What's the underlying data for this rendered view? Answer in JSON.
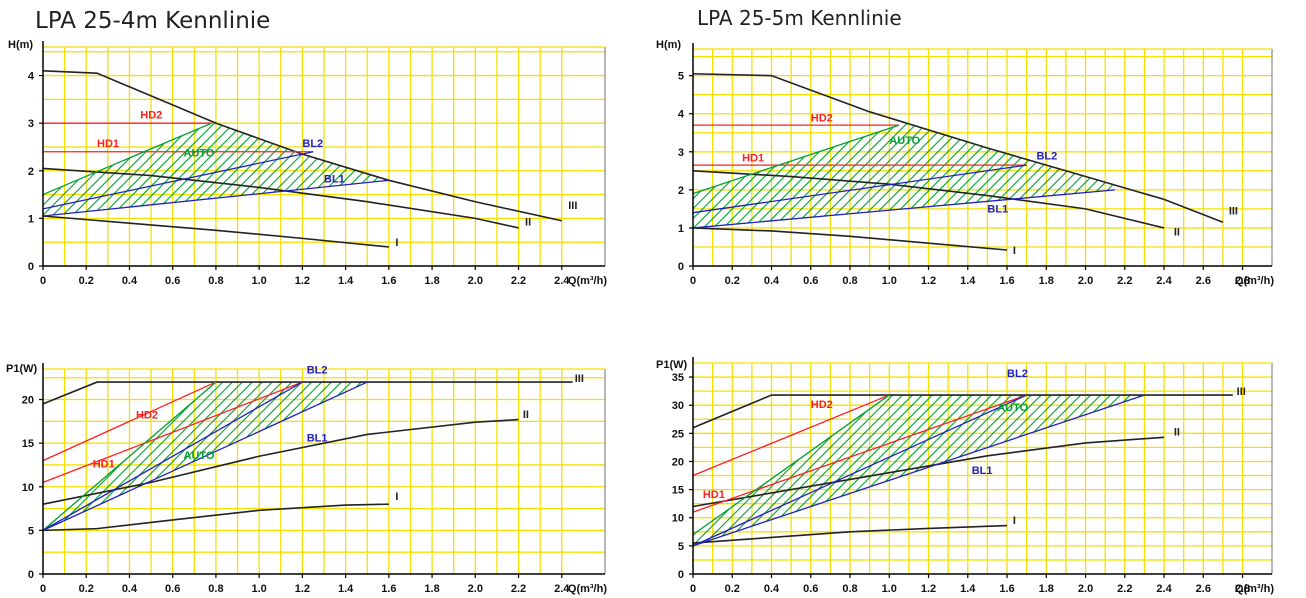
{
  "titles": {
    "left": "LPA 25-4m Kennlinie",
    "right": "LPA 25-5m Kennlinie"
  },
  "colors": {
    "grid": "#f5e000",
    "axis": "#000000",
    "black_curve": "#222222",
    "red": "#ff2020",
    "blue": "#2020c0",
    "green": "#00a030"
  },
  "chart_data": [
    {
      "id": "h4",
      "type": "line",
      "title": "",
      "xlabel": "Q(m³/h)",
      "ylabel": "H(m)",
      "xlim": [
        0,
        2.6
      ],
      "ylim": [
        0,
        4.6
      ],
      "xticks": [
        "0",
        "0.2",
        "0.4",
        "0.6",
        "0.8",
        "1.0",
        "1.2",
        "1.4",
        "1.6",
        "1.8",
        "2.0",
        "2.2",
        "2.4"
      ],
      "yticks": [
        "0",
        "1",
        "2",
        "3",
        "4"
      ],
      "grid": true,
      "series": [
        {
          "name": "III",
          "color": "black",
          "x": [
            0,
            0.25,
            0.8,
            1.2,
            1.6,
            2.0,
            2.4
          ],
          "y": [
            4.1,
            4.05,
            3.0,
            2.35,
            1.8,
            1.35,
            0.95
          ]
        },
        {
          "name": "II",
          "color": "black",
          "x": [
            0,
            0.5,
            1.0,
            1.5,
            2.0,
            2.2
          ],
          "y": [
            2.05,
            1.9,
            1.65,
            1.35,
            1.0,
            0.8
          ]
        },
        {
          "name": "I",
          "color": "black",
          "x": [
            0,
            0.4,
            0.8,
            1.2,
            1.6
          ],
          "y": [
            1.05,
            0.9,
            0.75,
            0.58,
            0.4
          ]
        },
        {
          "name": "HD2",
          "color": "red",
          "x": [
            0,
            0.78
          ],
          "y": [
            3.0,
            3.0
          ]
        },
        {
          "name": "HD1",
          "color": "red",
          "x": [
            0,
            1.25
          ],
          "y": [
            2.4,
            2.4
          ]
        },
        {
          "name": "BL2",
          "color": "blue",
          "x": [
            0,
            1.25
          ],
          "y": [
            1.2,
            2.4
          ]
        },
        {
          "name": "BL1",
          "color": "blue",
          "x": [
            0,
            1.6
          ],
          "y": [
            1.05,
            1.8
          ]
        },
        {
          "name": "AUTO",
          "color": "green",
          "x": [
            0,
            0.78
          ],
          "y": [
            1.5,
            3.0
          ]
        }
      ],
      "labels": [
        {
          "text": "III",
          "x": 2.43,
          "y": 1.2,
          "color": "black"
        },
        {
          "text": "II",
          "x": 2.23,
          "y": 0.85,
          "color": "black"
        },
        {
          "text": "I",
          "x": 1.63,
          "y": 0.42,
          "color": "black"
        },
        {
          "text": "HD2",
          "x": 0.45,
          "y": 3.1,
          "color": "red"
        },
        {
          "text": "HD1",
          "x": 0.25,
          "y": 2.5,
          "color": "red"
        },
        {
          "text": "AUTO",
          "x": 0.65,
          "y": 2.3,
          "color": "green"
        },
        {
          "text": "BL2",
          "x": 1.2,
          "y": 2.5,
          "color": "blue"
        },
        {
          "text": "BL1",
          "x": 1.3,
          "y": 1.75,
          "color": "blue"
        }
      ]
    },
    {
      "id": "h5",
      "type": "line",
      "title": "",
      "xlabel": "Q(m³/h)",
      "ylabel": "H(m)",
      "xlim": [
        0,
        2.95
      ],
      "ylim": [
        0,
        5.7
      ],
      "xticks": [
        "0",
        "0.2",
        "0.4",
        "0.6",
        "0.8",
        "1.0",
        "1.2",
        "1.4",
        "1.6",
        "1.8",
        "2.0",
        "2.2",
        "2.4",
        "2.6",
        "2.8"
      ],
      "yticks": [
        "0",
        "1",
        "2",
        "3",
        "4",
        "5"
      ],
      "grid": true,
      "series": [
        {
          "name": "III",
          "color": "black",
          "x": [
            0,
            0.4,
            0.9,
            1.5,
            2.0,
            2.4,
            2.7
          ],
          "y": [
            5.05,
            5.0,
            4.05,
            3.1,
            2.35,
            1.75,
            1.15
          ]
        },
        {
          "name": "II",
          "color": "black",
          "x": [
            0,
            0.5,
            1.0,
            1.5,
            2.0,
            2.4
          ],
          "y": [
            2.5,
            2.35,
            2.15,
            1.85,
            1.5,
            1.0
          ]
        },
        {
          "name": "I",
          "color": "black",
          "x": [
            0,
            0.4,
            0.8,
            1.2,
            1.6
          ],
          "y": [
            1.0,
            0.92,
            0.78,
            0.6,
            0.42
          ]
        },
        {
          "name": "HD2",
          "color": "red",
          "x": [
            0,
            1.05
          ],
          "y": [
            3.7,
            3.7
          ]
        },
        {
          "name": "HD1",
          "color": "red",
          "x": [
            0,
            1.7
          ],
          "y": [
            2.65,
            2.65
          ]
        },
        {
          "name": "BL2",
          "color": "blue",
          "x": [
            0,
            1.7
          ],
          "y": [
            1.4,
            2.65
          ]
        },
        {
          "name": "BL1",
          "color": "blue",
          "x": [
            0,
            2.15
          ],
          "y": [
            1.0,
            2.0
          ]
        },
        {
          "name": "AUTO",
          "color": "green",
          "x": [
            0,
            1.05
          ],
          "y": [
            1.9,
            3.7
          ]
        }
      ],
      "labels": [
        {
          "text": "III",
          "x": 2.73,
          "y": 1.35,
          "color": "black"
        },
        {
          "text": "II",
          "x": 2.45,
          "y": 0.8,
          "color": "black"
        },
        {
          "text": "I",
          "x": 1.63,
          "y": 0.32,
          "color": "black"
        },
        {
          "text": "HD2",
          "x": 0.6,
          "y": 3.8,
          "color": "red"
        },
        {
          "text": "HD1",
          "x": 0.25,
          "y": 2.75,
          "color": "red"
        },
        {
          "text": "AUTO",
          "x": 1.0,
          "y": 3.2,
          "color": "green"
        },
        {
          "text": "BL2",
          "x": 1.75,
          "y": 2.8,
          "color": "blue"
        },
        {
          "text": "BL1",
          "x": 1.5,
          "y": 1.4,
          "color": "blue"
        }
      ]
    },
    {
      "id": "p4",
      "type": "line",
      "title": "",
      "xlabel": "Q(m³/h)",
      "ylabel": "P1(W)",
      "xlim": [
        0,
        2.6
      ],
      "ylim": [
        0,
        23.5
      ],
      "xticks": [
        "0",
        "0.2",
        "0.4",
        "0.6",
        "0.8",
        "1.0",
        "1.2",
        "1.4",
        "1.6",
        "1.8",
        "2.0",
        "2.2",
        "2.4"
      ],
      "yticks": [
        "0",
        "5",
        "10",
        "15",
        "20"
      ],
      "grid": true,
      "series": [
        {
          "name": "III",
          "color": "black",
          "x": [
            0,
            0.25,
            2.45
          ],
          "y": [
            19.5,
            22.0,
            22.0
          ]
        },
        {
          "name": "II",
          "color": "black",
          "x": [
            0,
            0.5,
            1.0,
            1.5,
            2.0,
            2.2
          ],
          "y": [
            8.0,
            10.5,
            13.5,
            16.0,
            17.4,
            17.7
          ]
        },
        {
          "name": "I",
          "color": "black",
          "x": [
            0,
            0.25,
            0.6,
            1.0,
            1.4,
            1.6
          ],
          "y": [
            5.0,
            5.2,
            6.2,
            7.3,
            7.9,
            8.0
          ]
        },
        {
          "name": "HD2",
          "color": "red",
          "x": [
            0,
            0.8
          ],
          "y": [
            13.0,
            22.0
          ]
        },
        {
          "name": "HD1",
          "color": "red",
          "x": [
            0,
            1.2
          ],
          "y": [
            10.5,
            22.0
          ]
        },
        {
          "name": "AUTO",
          "color": "green",
          "x": [
            0,
            0.8
          ],
          "y": [
            5.0,
            22.0
          ]
        },
        {
          "name": "BL2",
          "color": "blue",
          "x": [
            0,
            1.2
          ],
          "y": [
            5.0,
            22.0
          ]
        },
        {
          "name": "BL1",
          "color": "blue",
          "x": [
            0,
            1.5
          ],
          "y": [
            5.0,
            22.0
          ]
        }
      ],
      "labels": [
        {
          "text": "III",
          "x": 2.46,
          "y": 22.0,
          "color": "black"
        },
        {
          "text": "II",
          "x": 2.22,
          "y": 17.9,
          "color": "black"
        },
        {
          "text": "I",
          "x": 1.63,
          "y": 8.5,
          "color": "black"
        },
        {
          "text": "HD2",
          "x": 0.43,
          "y": 17.8,
          "color": "red"
        },
        {
          "text": "HD1",
          "x": 0.23,
          "y": 12.2,
          "color": "red"
        },
        {
          "text": "AUTO",
          "x": 0.65,
          "y": 13.2,
          "color": "green"
        },
        {
          "text": "BL2",
          "x": 1.22,
          "y": 23.0,
          "color": "blue"
        },
        {
          "text": "BL1",
          "x": 1.22,
          "y": 15.2,
          "color": "blue"
        }
      ]
    },
    {
      "id": "p5",
      "type": "line",
      "title": "",
      "xlabel": "Q(m³/h)",
      "ylabel": "P1(W)",
      "xlim": [
        0,
        2.95
      ],
      "ylim": [
        0,
        37.5
      ],
      "xticks": [
        "0",
        "0.2",
        "0.4",
        "0.6",
        "0.8",
        "1.0",
        "1.2",
        "1.4",
        "1.6",
        "1.8",
        "2.0",
        "2.2",
        "2.4",
        "2.6",
        "2.8"
      ],
      "yticks": [
        "0",
        "5",
        "10",
        "15",
        "20",
        "25",
        "30",
        "35"
      ],
      "grid": true,
      "series": [
        {
          "name": "III",
          "color": "black",
          "x": [
            0,
            0.4,
            2.75
          ],
          "y": [
            26.0,
            31.8,
            31.8
          ]
        },
        {
          "name": "II",
          "color": "black",
          "x": [
            0,
            0.5,
            1.0,
            1.5,
            2.0,
            2.4
          ],
          "y": [
            12.0,
            15.0,
            18.0,
            21.0,
            23.3,
            24.3
          ]
        },
        {
          "name": "I",
          "color": "black",
          "x": [
            0,
            0.4,
            0.8,
            1.2,
            1.6
          ],
          "y": [
            5.5,
            6.5,
            7.5,
            8.1,
            8.6
          ]
        },
        {
          "name": "HD2",
          "color": "red",
          "x": [
            0,
            1.0
          ],
          "y": [
            17.5,
            31.8
          ]
        },
        {
          "name": "HD1",
          "color": "red",
          "x": [
            0,
            1.7
          ],
          "y": [
            11.0,
            31.8
          ]
        },
        {
          "name": "AUTO",
          "color": "green",
          "x": [
            0,
            1.0
          ],
          "y": [
            7.0,
            31.8
          ]
        },
        {
          "name": "BL2",
          "color": "blue",
          "x": [
            0,
            1.7
          ],
          "y": [
            5.0,
            31.8
          ]
        },
        {
          "name": "BL1",
          "color": "blue",
          "x": [
            0,
            2.3
          ],
          "y": [
            5.0,
            31.8
          ]
        }
      ],
      "labels": [
        {
          "text": "III",
          "x": 2.77,
          "y": 31.8,
          "color": "black"
        },
        {
          "text": "II",
          "x": 2.45,
          "y": 24.6,
          "color": "black"
        },
        {
          "text": "I",
          "x": 1.63,
          "y": 8.9,
          "color": "black"
        },
        {
          "text": "HD2",
          "x": 0.6,
          "y": 29.5,
          "color": "red"
        },
        {
          "text": "HD1",
          "x": 0.05,
          "y": 13.5,
          "color": "red"
        },
        {
          "text": "AUTO",
          "x": 1.55,
          "y": 29.0,
          "color": "green"
        },
        {
          "text": "BL2",
          "x": 1.6,
          "y": 35.0,
          "color": "blue"
        },
        {
          "text": "BL1",
          "x": 1.42,
          "y": 17.8,
          "color": "blue"
        }
      ]
    }
  ]
}
